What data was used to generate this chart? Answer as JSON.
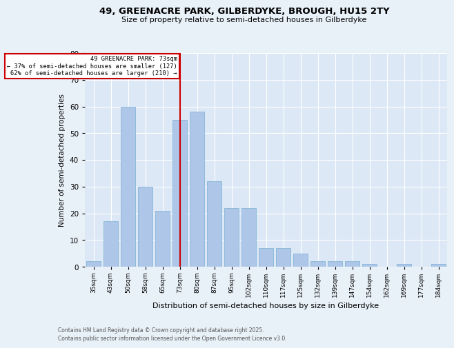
{
  "title1": "49, GREENACRE PARK, GILBERDYKE, BROUGH, HU15 2TY",
  "title2": "Size of property relative to semi-detached houses in Gilberdyke",
  "xlabel": "Distribution of semi-detached houses by size in Gilberdyke",
  "ylabel": "Number of semi-detached properties",
  "categories": [
    "35sqm",
    "43sqm",
    "50sqm",
    "58sqm",
    "65sqm",
    "73sqm",
    "80sqm",
    "87sqm",
    "95sqm",
    "102sqm",
    "110sqm",
    "117sqm",
    "125sqm",
    "132sqm",
    "139sqm",
    "147sqm",
    "154sqm",
    "162sqm",
    "169sqm",
    "177sqm",
    "184sqm"
  ],
  "values": [
    2,
    17,
    60,
    30,
    21,
    55,
    58,
    32,
    22,
    22,
    7,
    7,
    5,
    2,
    2,
    2,
    1,
    0,
    1,
    0,
    1
  ],
  "bar_color": "#aec6e8",
  "bar_edge_color": "#7aafd4",
  "highlight_index": 5,
  "highlight_color": "#cc0000",
  "annotation_title": "49 GREENACRE PARK: 73sqm",
  "annotation_line1": "← 37% of semi-detached houses are smaller (127)",
  "annotation_line2": "62% of semi-detached houses are larger (210) →",
  "annotation_box_color": "#ffffff",
  "annotation_box_edge": "#cc0000",
  "ylim": [
    0,
    80
  ],
  "yticks": [
    0,
    10,
    20,
    30,
    40,
    50,
    60,
    70,
    80
  ],
  "footer1": "Contains HM Land Registry data © Crown copyright and database right 2025.",
  "footer2": "Contains public sector information licensed under the Open Government Licence v3.0.",
  "bg_color": "#e8f0f8",
  "plot_bg_color": "#dce8f5"
}
